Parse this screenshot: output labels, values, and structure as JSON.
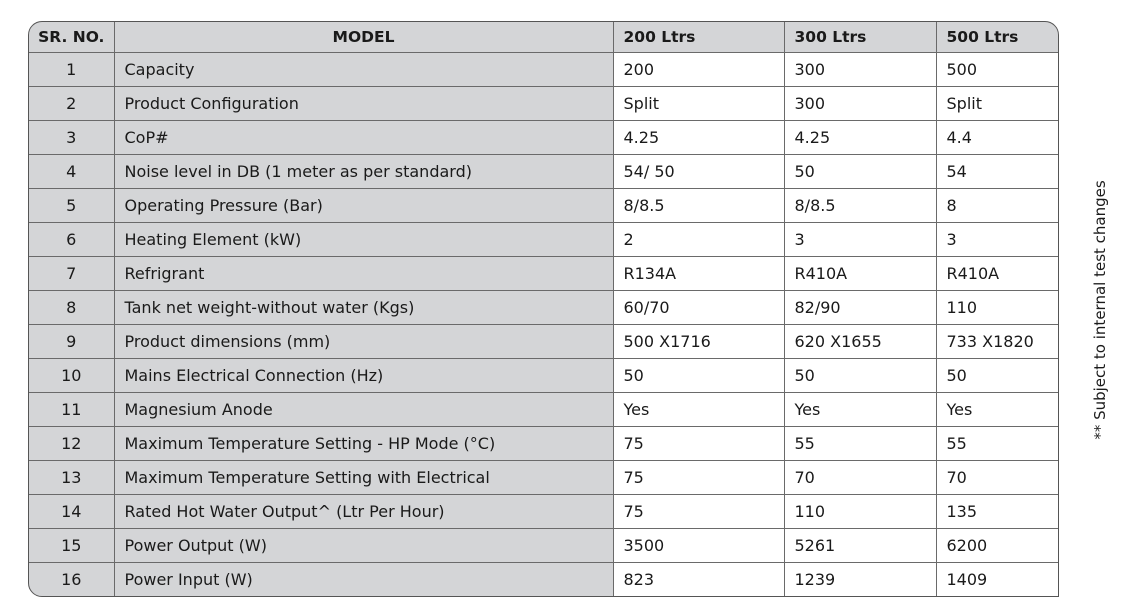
{
  "headers": [
    "SR. NO.",
    "MODEL",
    "200 Ltrs",
    "300 Ltrs",
    "500 Ltrs"
  ],
  "rows": [
    [
      "1",
      "Capacity",
      "200",
      "300",
      "500"
    ],
    [
      "2",
      "Product Configuration",
      "Split",
      "300",
      "Split"
    ],
    [
      "3",
      "CoP#",
      "4.25",
      "4.25",
      "4.4"
    ],
    [
      "4",
      "Noise level in DB (1 meter as per standard)",
      "54/ 50",
      "50",
      "54"
    ],
    [
      "5",
      "Operating Pressure (Bar)",
      "8/8.5",
      "8/8.5",
      "8"
    ],
    [
      "6",
      "Heating Element (kW)",
      "2",
      "3",
      "3"
    ],
    [
      "7",
      "Refrigrant",
      "R134A",
      "R410A",
      "R410A"
    ],
    [
      "8",
      "Tank net weight-without water (Kgs)",
      "60/70",
      "82/90",
      "110"
    ],
    [
      "9",
      "Product dimensions  (mm)",
      "500 X1716",
      "620 X1655",
      "733 X1820"
    ],
    [
      "10",
      "Mains Electrical Connection  (Hz)",
      "50",
      "50",
      "50"
    ],
    [
      "11",
      "Magnesium Anode",
      "Yes",
      "Yes",
      "Yes"
    ],
    [
      "12",
      "Maximum Temperature Setting - HP Mode (°C)",
      "75",
      "55",
      "55"
    ],
    [
      "13",
      "Maximum Temperature Setting with Electrical",
      "75",
      "70",
      "70"
    ],
    [
      "14",
      "Rated Hot Water Output^ (Ltr Per Hour)",
      "75",
      "110",
      "135"
    ],
    [
      "15",
      "Power Output (W)",
      "3500",
      "5261",
      "6200"
    ],
    [
      "16",
      "Power Input (W)",
      "823",
      "1239",
      "1409"
    ]
  ],
  "side_note": "** Subject to internal test changes"
}
